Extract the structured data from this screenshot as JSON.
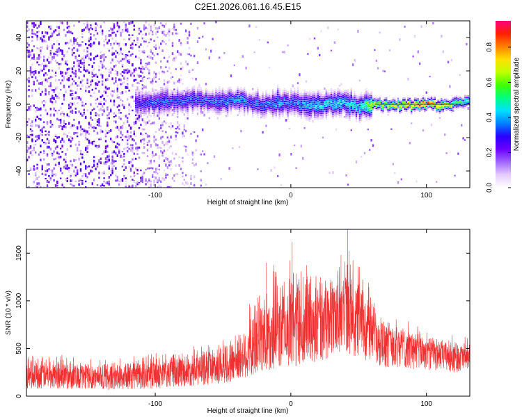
{
  "chart_data": [
    {
      "type": "heatmap",
      "title": "C2E1.2026.061.16.45.E15",
      "xlabel": "Height of straight line (km)",
      "ylabel": "Frequency (Hz)",
      "xlim": [
        -195,
        132
      ],
      "ylim": [
        -50,
        50
      ],
      "xticks": [
        "-100",
        "0",
        "100"
      ],
      "yticks": [
        "-40",
        "-20",
        "0",
        "20",
        "40"
      ],
      "colorbar": {
        "label": "Normalized spectral amplitude",
        "range": [
          0,
          0.95
        ],
        "ticks": [
          "0.0",
          "0.2",
          "0.4",
          "0.6",
          "0.8"
        ],
        "colormap": [
          "#ffffff",
          "#e6ccff",
          "#a066ff",
          "#6a00ff",
          "#2a00ff",
          "#0080ff",
          "#00e0ff",
          "#00ff80",
          "#40ff00",
          "#c0ff00",
          "#ffe000",
          "#ff8000",
          "#ff2000",
          "#ff0080"
        ]
      },
      "ridge": {
        "x": [
          -110,
          -100,
          -90,
          -80,
          -70,
          -60,
          -50,
          -40,
          -30,
          -20,
          -10,
          0,
          10,
          20,
          30,
          40,
          50,
          60,
          70,
          80,
          90,
          100,
          110,
          120,
          130
        ],
        "y": [
          1,
          2,
          2,
          3,
          3,
          2,
          2,
          3,
          1,
          0,
          2,
          1,
          0,
          0,
          1,
          1,
          -1,
          0,
          0,
          0,
          0,
          0,
          0,
          1,
          2
        ],
        "peak_amplitude": [
          0.3,
          0.35,
          0.35,
          0.35,
          0.35,
          0.35,
          0.35,
          0.4,
          0.35,
          0.35,
          0.4,
          0.35,
          0.4,
          0.45,
          0.45,
          0.45,
          0.45,
          0.7,
          0.7,
          0.75,
          0.9,
          0.9,
          0.8,
          0.65,
          0.5
        ]
      }
    },
    {
      "type": "line",
      "xlabel": "Height of straight line (km)",
      "ylabel": "SNR (10 * v/v)",
      "xlim": [
        -195,
        132
      ],
      "ylim": [
        0,
        1750
      ],
      "xticks": [
        "-100",
        "0",
        "100"
      ],
      "yticks": [
        "0",
        "500",
        "1000",
        "1500"
      ],
      "color": "#f03030",
      "envelope_x": [
        -195,
        -170,
        -140,
        -120,
        -100,
        -80,
        -60,
        -50,
        -40,
        -30,
        -20,
        -10,
        0,
        10,
        20,
        30,
        40,
        50,
        60,
        70,
        80,
        90,
        100,
        110,
        120,
        132
      ],
      "envelope_mean": [
        230,
        220,
        200,
        200,
        230,
        260,
        300,
        320,
        380,
        460,
        560,
        640,
        700,
        760,
        800,
        860,
        900,
        820,
        700,
        620,
        570,
        520,
        480,
        450,
        430,
        420
      ],
      "envelope_upper": [
        430,
        400,
        370,
        380,
        420,
        450,
        530,
        580,
        650,
        900,
        1250,
        1300,
        1400,
        1450,
        1200,
        1300,
        1500,
        1250,
        1050,
        800,
        750,
        700,
        650,
        600,
        580,
        560
      ],
      "envelope_lower": [
        80,
        80,
        70,
        70,
        80,
        100,
        120,
        130,
        160,
        200,
        250,
        300,
        300,
        320,
        350,
        400,
        450,
        400,
        350,
        300,
        300,
        280,
        270,
        260,
        250,
        250
      ],
      "peaks": [
        {
          "x": 42,
          "y": 1750
        },
        {
          "x": 1,
          "y": 1620
        },
        {
          "x": 37,
          "y": 1480
        },
        {
          "x": -18,
          "y": 1400
        }
      ]
    }
  ]
}
